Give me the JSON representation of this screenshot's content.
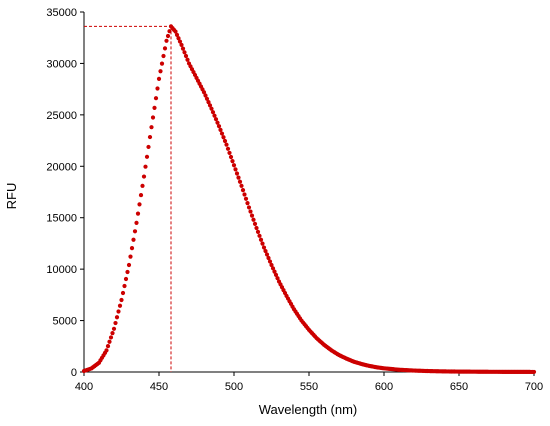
{
  "chart_data": {
    "type": "scatter",
    "title": "",
    "xlabel": "Wavelength (nm)",
    "ylabel": "RFU",
    "xlim": [
      400,
      700
    ],
    "ylim": [
      0,
      35000
    ],
    "xticks": [
      400,
      450,
      500,
      550,
      600,
      650,
      700
    ],
    "yticks": [
      0,
      5000,
      10000,
      15000,
      20000,
      25000,
      30000,
      35000
    ],
    "xtick_labels": [
      "400",
      "450",
      "500",
      "550",
      "600",
      "650",
      "700"
    ],
    "ytick_labels": [
      "0",
      "5000",
      "10000",
      "15000",
      "20000",
      "25000",
      "30000",
      "35000"
    ],
    "grid": false,
    "marker_color": "#cc0000",
    "peak": {
      "x": 458,
      "y": 33600
    },
    "peak_guides": "dashed lines from peak to axes",
    "series": [
      {
        "color": "#cc0000",
        "points": [
          [
            400,
            100
          ],
          [
            405,
            350
          ],
          [
            410,
            900
          ],
          [
            415,
            2100
          ],
          [
            420,
            4200
          ],
          [
            425,
            7000
          ],
          [
            430,
            10400
          ],
          [
            435,
            14500
          ],
          [
            440,
            19000
          ],
          [
            445,
            23800
          ],
          [
            450,
            28500
          ],
          [
            455,
            32200
          ],
          [
            458,
            33600
          ],
          [
            461,
            33100
          ],
          [
            465,
            31800
          ],
          [
            470,
            30000
          ],
          [
            475,
            28600
          ],
          [
            480,
            27200
          ],
          [
            485,
            25600
          ],
          [
            490,
            23900
          ],
          [
            495,
            22100
          ],
          [
            500,
            20100
          ],
          [
            505,
            18100
          ],
          [
            510,
            16000
          ],
          [
            515,
            14000
          ],
          [
            520,
            12100
          ],
          [
            525,
            10400
          ],
          [
            530,
            8800
          ],
          [
            535,
            7400
          ],
          [
            540,
            6100
          ],
          [
            545,
            5000
          ],
          [
            550,
            4100
          ],
          [
            555,
            3300
          ],
          [
            560,
            2650
          ],
          [
            565,
            2100
          ],
          [
            570,
            1650
          ],
          [
            575,
            1300
          ],
          [
            580,
            1000
          ],
          [
            585,
            780
          ],
          [
            590,
            600
          ],
          [
            595,
            460
          ],
          [
            600,
            360
          ],
          [
            610,
            220
          ],
          [
            620,
            140
          ],
          [
            630,
            90
          ],
          [
            640,
            60
          ],
          [
            650,
            40
          ],
          [
            660,
            30
          ],
          [
            670,
            20
          ],
          [
            680,
            15
          ],
          [
            690,
            10
          ],
          [
            700,
            8
          ]
        ]
      }
    ]
  }
}
